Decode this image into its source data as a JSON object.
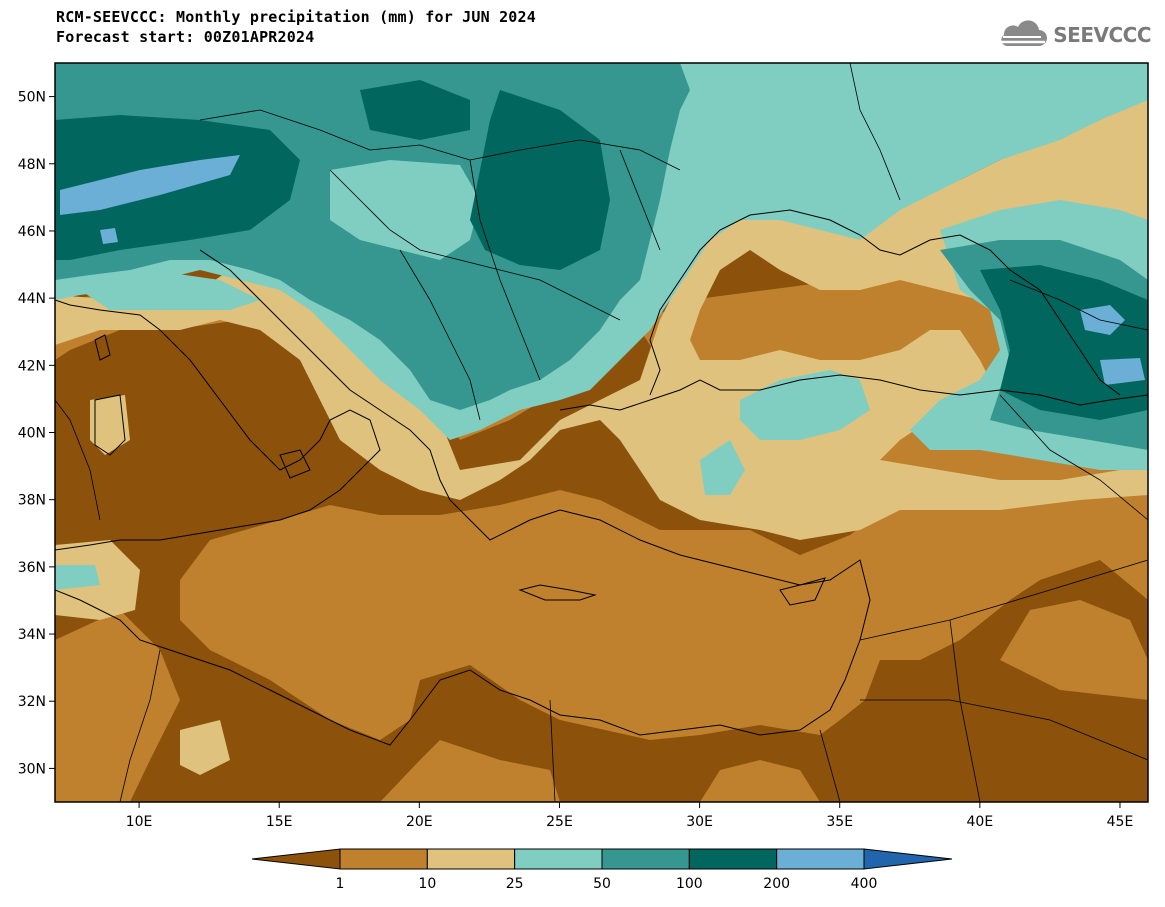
{
  "header": {
    "title_line1": "RCM-SEEVCCC: Monthly precipitation (mm) for JUN 2024",
    "title_line2": "Forecast start: 00Z01APR2024"
  },
  "logo": {
    "text": "SEEVCCC",
    "icon": "cloud-icon"
  },
  "map": {
    "lon_ticks": [
      "10E",
      "15E",
      "20E",
      "25E",
      "30E",
      "35E",
      "40E",
      "45E"
    ],
    "lat_ticks": [
      "50N",
      "48N",
      "46N",
      "44N",
      "42N",
      "40N",
      "38N",
      "36N",
      "34N",
      "32N",
      "30N"
    ],
    "lon_range": [
      7,
      46
    ],
    "lat_range": [
      29,
      51
    ]
  },
  "colorbar": {
    "labels": [
      "1",
      "10",
      "25",
      "50",
      "100",
      "200",
      "400"
    ],
    "colors": [
      "#8c510a",
      "#bf812d",
      "#dfc27d",
      "#80cdc1",
      "#35978f",
      "#01665e",
      "#6baed6",
      "#2166ac"
    ]
  }
}
